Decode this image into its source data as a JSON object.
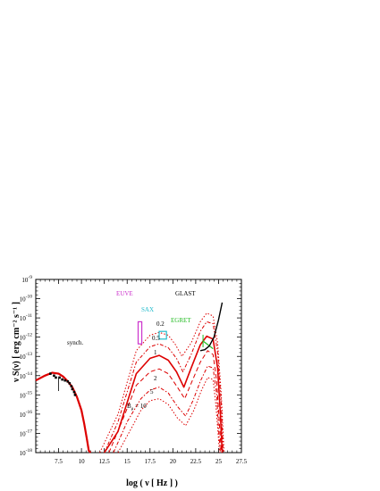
{
  "chart_data": {
    "type": "line",
    "xlabel": "log ( ν [ Hz ] )",
    "ylabel": "ν S(ν) [ erg cm⁻² s⁻¹ ]",
    "xlim": [
      5,
      27.5
    ],
    "ylim": [
      -18,
      -9
    ],
    "x_ticks": [
      {
        "value": 7.5,
        "label": "7.5"
      },
      {
        "value": 10,
        "label": "10"
      },
      {
        "value": 12.5,
        "label": "12.5"
      },
      {
        "value": 15,
        "label": "15"
      },
      {
        "value": 17.5,
        "label": "17.5"
      },
      {
        "value": 20,
        "label": "20"
      },
      {
        "value": 22.5,
        "label": "22.5"
      },
      {
        "value": 25,
        "label": "25"
      },
      {
        "value": 27.5,
        "label": "27.5"
      }
    ],
    "y_ticks": [
      {
        "value": -9,
        "exp": "-9"
      },
      {
        "value": -10,
        "exp": "-10"
      },
      {
        "value": -11,
        "exp": "-11"
      },
      {
        "value": -12,
        "exp": "-12"
      },
      {
        "value": -13,
        "exp": "-13"
      },
      {
        "value": -14,
        "exp": "-14"
      },
      {
        "value": -15,
        "exp": "-15"
      },
      {
        "value": -16,
        "exp": "-16"
      },
      {
        "value": -17,
        "exp": "-17"
      },
      {
        "value": -18,
        "exp": "-18"
      }
    ],
    "tick_base": "10",
    "annotations": {
      "euve": "EUVE",
      "sax": "SAX",
      "egret": "EGRET",
      "glast": "GLAST",
      "synch": "synch.",
      "b02": "0.2",
      "b05": "0.5",
      "b1": "1",
      "b2": "2",
      "b5": "5",
      "b10": "B",
      "b10_sub": "μ",
      "b10_val": " = 10"
    },
    "colors": {
      "model": "#dd0000",
      "euve": "#cc33cc",
      "sax": "#22bbcc",
      "egret": "#22bb22",
      "glast": "#000000",
      "data": "#000000"
    },
    "series": [
      {
        "name": "0.2",
        "dash": "1.5,2",
        "width": 1.0,
        "ic": {
          "x": [
            12,
            14,
            16,
            17.5,
            18.5,
            19.5,
            20.3,
            21.0,
            22.0,
            23.0,
            23.7,
            24.4,
            24.9,
            25.3,
            25.6
          ],
          "y": [
            -18,
            -16.0,
            -12.7,
            -11.9,
            -11.75,
            -11.9,
            -12.4,
            -13.0,
            -12.3,
            -11.2,
            -10.75,
            -10.9,
            -12.3,
            -15.0,
            -18
          ]
        }
      },
      {
        "name": "0.5",
        "dash": "4,2,1.5,2",
        "width": 1.0,
        "ic": {
          "x": [
            12.5,
            14,
            16,
            17.5,
            18.5,
            19.5,
            20.4,
            21.1,
            22.0,
            23.0,
            23.7,
            24.4,
            24.9,
            25.3,
            25.5
          ],
          "y": [
            -18,
            -16.4,
            -13.3,
            -12.5,
            -12.35,
            -12.55,
            -13.1,
            -13.8,
            -12.9,
            -11.7,
            -11.2,
            -11.3,
            -12.8,
            -15.5,
            -18
          ]
        }
      },
      {
        "name": "1",
        "dash": "",
        "width": 1.6,
        "ic": {
          "x": [
            12.5,
            14,
            16,
            17.5,
            18.5,
            19.5,
            20.4,
            21.2,
            22.0,
            23.0,
            23.7,
            24.4,
            24.9,
            25.2,
            25.4
          ],
          "y": [
            -18,
            -16.9,
            -13.9,
            -13.1,
            -12.95,
            -13.2,
            -13.8,
            -14.6,
            -13.6,
            -12.4,
            -11.95,
            -12.1,
            -13.6,
            -16.0,
            -18
          ]
        }
      },
      {
        "name": "2",
        "dash": "5,3",
        "width": 1.0,
        "ic": {
          "x": [
            13,
            14.5,
            16,
            17.5,
            18.5,
            19.5,
            20.5,
            21.3,
            22.0,
            23.0,
            23.8,
            24.4,
            24.8,
            25.1,
            25.3
          ],
          "y": [
            -18,
            -16.3,
            -14.5,
            -13.8,
            -13.65,
            -13.9,
            -14.6,
            -15.2,
            -14.4,
            -13.3,
            -12.7,
            -12.9,
            -14.3,
            -16.6,
            -18
          ]
        }
      },
      {
        "name": "5",
        "dash": "4,2,1.5,2",
        "width": 1.0,
        "ic": {
          "x": [
            13.5,
            15,
            16.5,
            17.5,
            18.5,
            19.5,
            20.5,
            21.4,
            22.2,
            23.0,
            23.8,
            24.4,
            24.8,
            25.0,
            25.2
          ],
          "y": [
            -18,
            -16.4,
            -15.2,
            -14.75,
            -14.6,
            -14.9,
            -15.6,
            -16.1,
            -15.3,
            -14.3,
            -13.5,
            -13.6,
            -15.0,
            -16.8,
            -18
          ]
        }
      },
      {
        "name": "10",
        "dash": "1.5,2",
        "width": 1.0,
        "ic": {
          "x": [
            14,
            15.5,
            16.5,
            17.5,
            18.5,
            19.5,
            20.5,
            21.4,
            22.3,
            23.1,
            23.8,
            24.4,
            24.7,
            24.95,
            25.1
          ],
          "y": [
            -18,
            -16.7,
            -15.8,
            -15.3,
            -15.2,
            -15.5,
            -16.2,
            -16.6,
            -15.8,
            -14.8,
            -14.1,
            -14.2,
            -15.5,
            -17.0,
            -18
          ]
        }
      }
    ],
    "synchrotron": {
      "x": [
        5.0,
        6.0,
        6.8,
        7.5,
        8.0,
        8.5,
        9.0,
        9.5,
        10.0,
        10.3,
        10.6,
        10.8,
        11.0
      ],
      "y": [
        -14.25,
        -14.0,
        -13.85,
        -13.9,
        -14.05,
        -14.3,
        -14.6,
        -15.1,
        -15.8,
        -16.5,
        -17.3,
        -17.9,
        -18
      ]
    },
    "radio_points": {
      "x": [
        6.6,
        7.0,
        7.2,
        7.6,
        7.9,
        8.2,
        8.5,
        8.7,
        8.9,
        9.0,
        9.2,
        9.3
      ],
      "y": [
        -13.9,
        -14.0,
        -14.1,
        -14.1,
        -14.2,
        -14.25,
        -14.3,
        -14.4,
        -14.55,
        -14.7,
        -14.85,
        -15.0
      ]
    },
    "xray_errbar": {
      "x": 7.5,
      "y_low": -14.8,
      "y_high": -14.1
    },
    "euve_box": {
      "x": [
        16.2,
        16.6
      ],
      "y_low": -12.35,
      "y_high": -11.2
    },
    "sax_box": {
      "x": [
        18.5,
        19.3
      ],
      "y_low": -12.1,
      "y_high": -11.7
    },
    "egret": {
      "x": [
        23.3,
        24.4
      ],
      "y": [
        -12.2,
        -12.6
      ]
    },
    "glast": {
      "x": [
        23.0,
        23.5,
        24.0,
        24.5,
        25.0,
        25.4
      ],
      "y": [
        -12.7,
        -12.65,
        -12.45,
        -12.0,
        -11.1,
        -10.2
      ]
    }
  }
}
